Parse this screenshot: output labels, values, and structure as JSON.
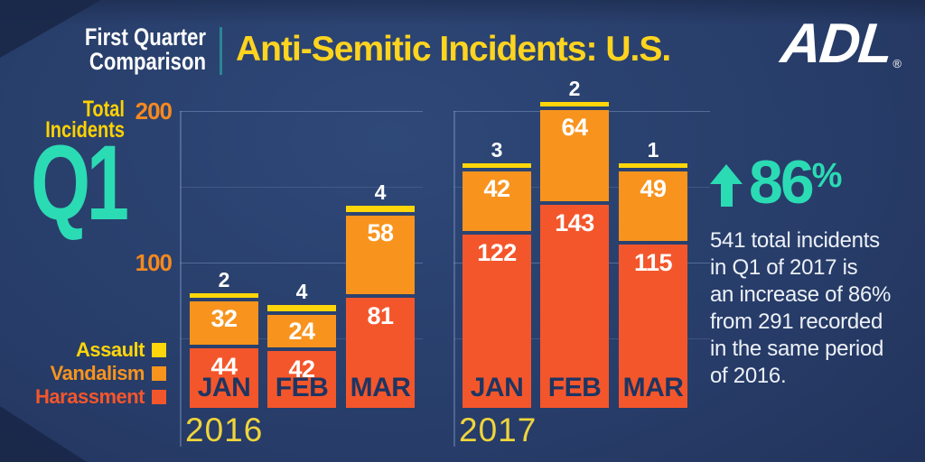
{
  "header": {
    "kicker": [
      "First Quarter",
      "Comparison"
    ],
    "title": "Anti-Semitic Incidents: U.S.",
    "logo_text": "ADL",
    "logo_reg": "®"
  },
  "left_panel": {
    "axis_title_line1": "Total",
    "axis_title_line2": "Incidents",
    "quarter_badge": "Q1"
  },
  "callout": {
    "direction": "up",
    "stat_value": "86",
    "stat_unit": "%",
    "body": "541 total incidents\nin Q1 of 2017 is\nan increase of 86%\nfrom 291 recorded\nin the same period\nof 2016."
  },
  "colors": {
    "accent-teal": "#2BDBB4",
    "title-yellow": "#FFD41F",
    "label-yellow": "#FFD200",
    "axis-orange": "#F6891F",
    "year-yellow": "#EFD43C",
    "month-navy": "#1D3563",
    "divider-teal": "#2C8696",
    "gridline-blue": "#7E96C4",
    "text-white": "#EDF1F7"
  },
  "chart_data": {
    "type": "bar",
    "stacked": true,
    "title": "Anti-Semitic Incidents: U.S.",
    "subtitle": "First Quarter Comparison",
    "y_axis": {
      "min": 0,
      "top_value": 200,
      "ticks": [
        200,
        100
      ],
      "gridlines": [
        200,
        150,
        100,
        50
      ]
    },
    "legend_position": "bottom-left",
    "legend": [
      {
        "id": "assault",
        "label": "Assault",
        "color": "#FFD60A"
      },
      {
        "id": "vandalism",
        "label": "Vandalism",
        "color": "#F8941D"
      },
      {
        "id": "harassment",
        "label": "Harassment",
        "color": "#F4562B"
      }
    ],
    "stack_order_bottom_to_top": [
      "harassment",
      "vandalism",
      "assault"
    ],
    "groups": [
      {
        "label": "2016",
        "categories": [
          "JAN",
          "FEB",
          "MAR"
        ],
        "series": [
          {
            "name": "Harassment",
            "values": [
              44,
              42,
              81
            ]
          },
          {
            "name": "Vandalism",
            "values": [
              32,
              24,
              58
            ]
          },
          {
            "name": "Assault",
            "values": [
              2,
              4,
              4
            ]
          }
        ]
      },
      {
        "label": "2017",
        "categories": [
          "JAN",
          "FEB",
          "MAR"
        ],
        "series": [
          {
            "name": "Harassment",
            "values": [
              122,
              143,
              115
            ]
          },
          {
            "name": "Vandalism",
            "values": [
              42,
              64,
              49
            ]
          },
          {
            "name": "Assault",
            "values": [
              3,
              2,
              1
            ]
          }
        ]
      }
    ]
  }
}
